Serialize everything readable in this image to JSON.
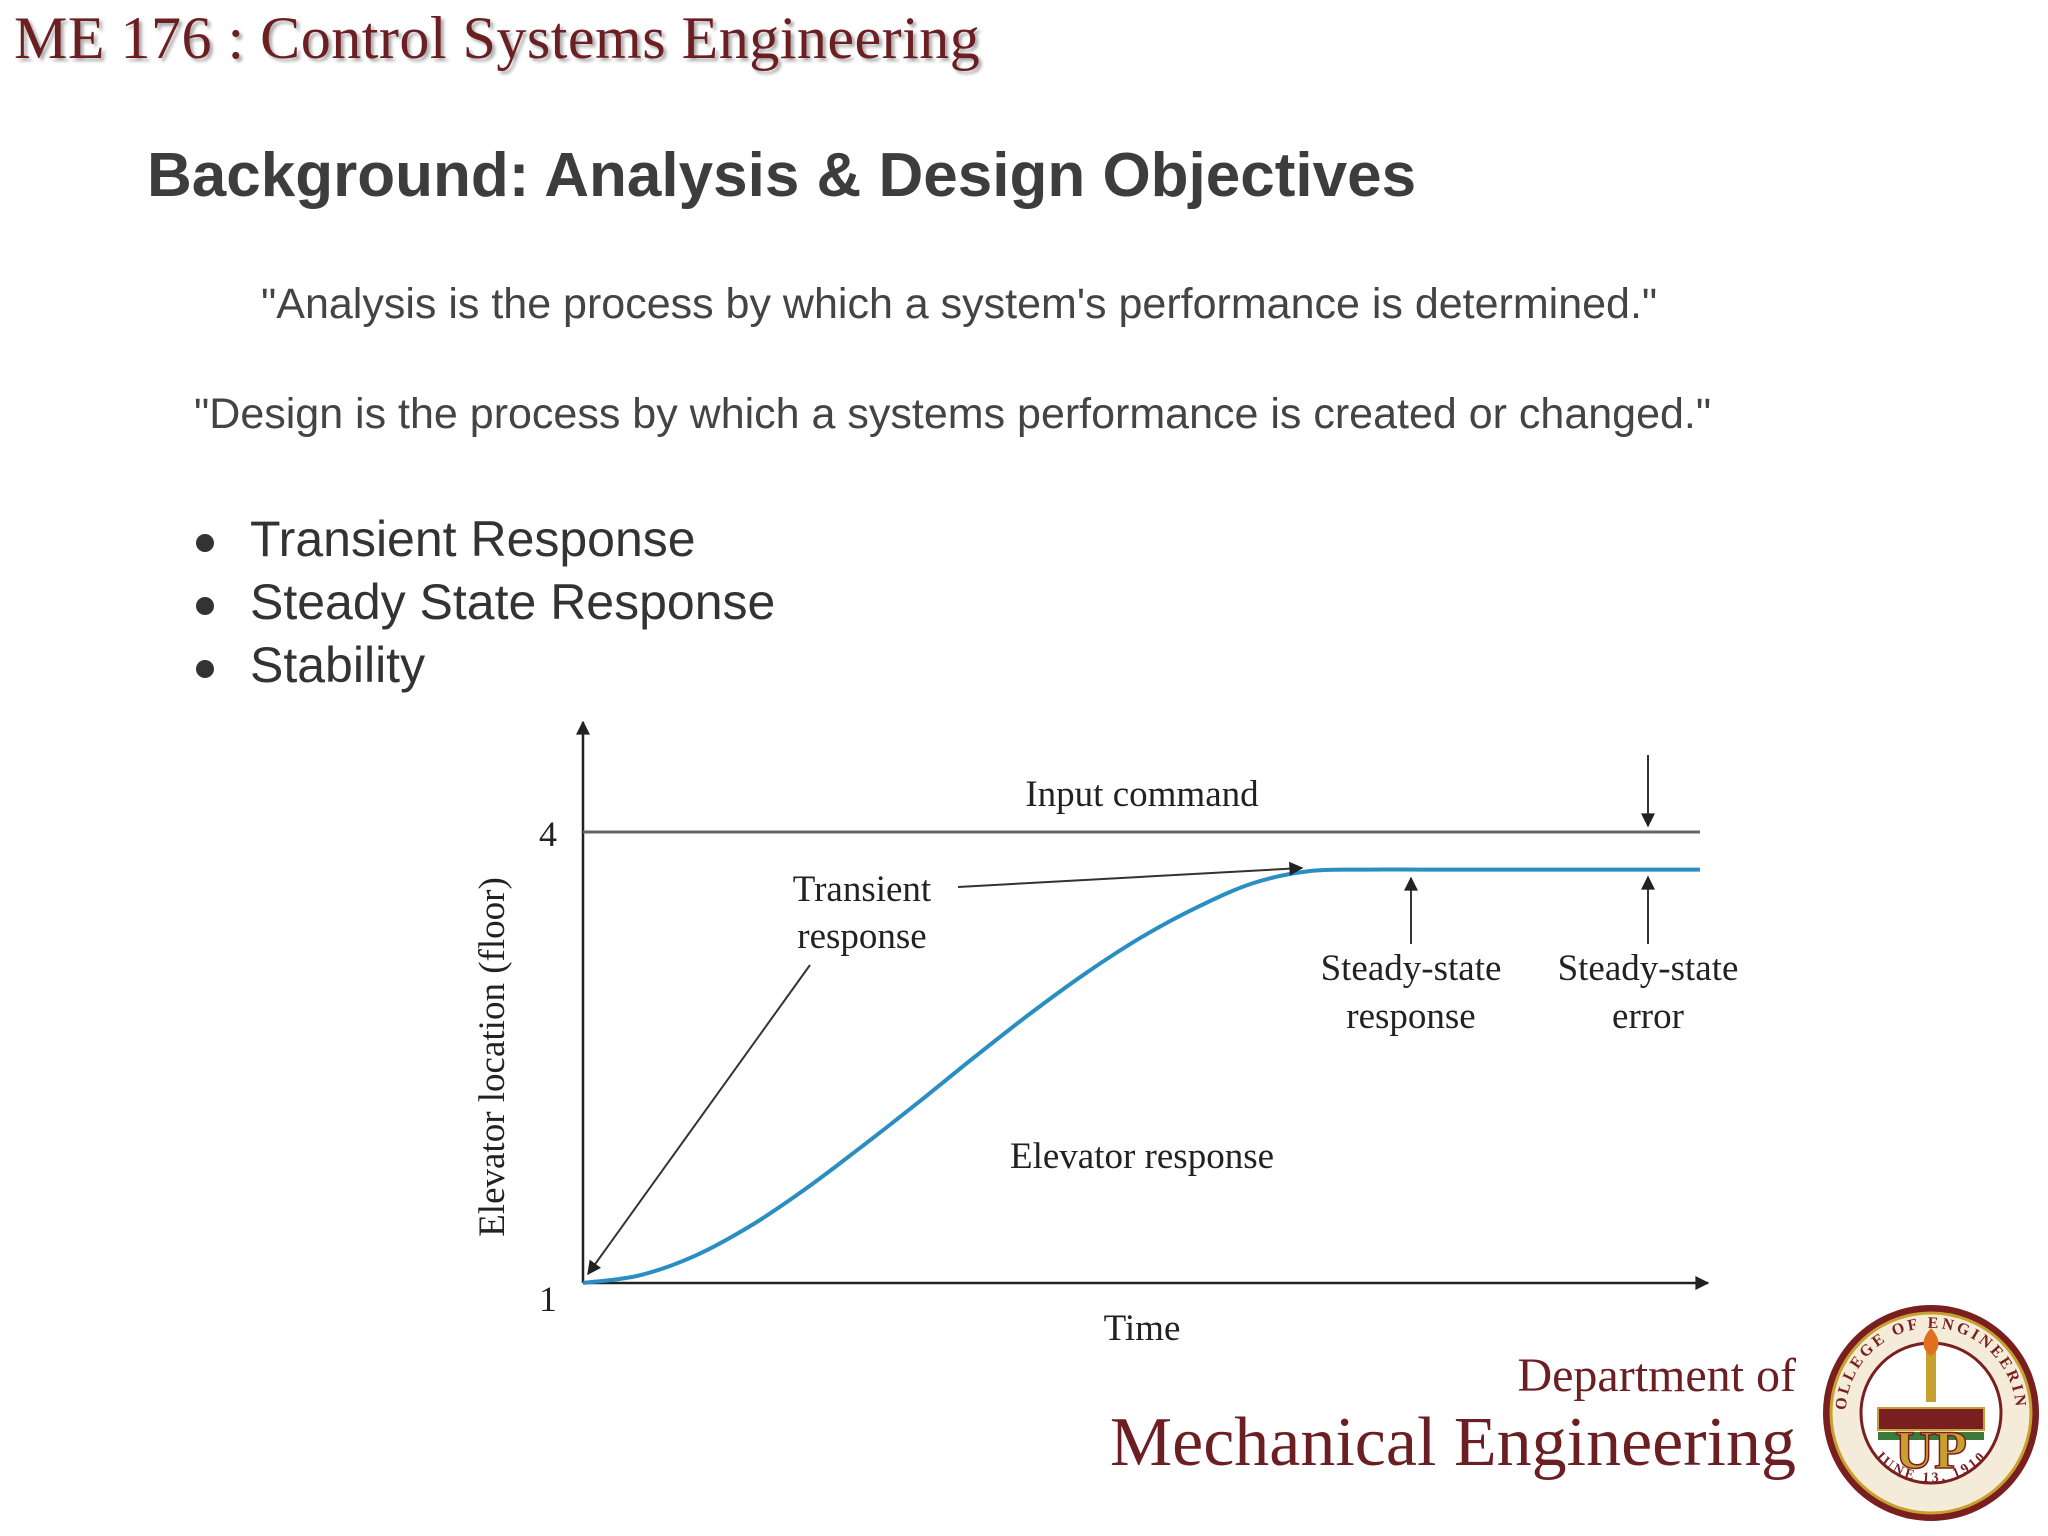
{
  "header": {
    "course_title": "ME 176 :  Control Systems Engineering"
  },
  "slide": {
    "title": "Background:  Analysis & Design Objectives",
    "quotes": [
      "\"Analysis is the process by which a system's performance is determined.\"",
      "\"Design is the process by which a systems performance is created or changed.\""
    ],
    "bullets": [
      "Transient Response",
      "Steady State Response",
      "Stability"
    ]
  },
  "chart_data": {
    "type": "line",
    "xlabel": "Time",
    "ylabel": "Elevator location (floor)",
    "y_ticks": [
      "1",
      "4"
    ],
    "ylim": [
      1,
      4
    ],
    "x_units": "relative time (no numeric ticks shown)",
    "series": [
      {
        "name": "Elevator response",
        "color": "#2a8ec2",
        "x": [
          0,
          0.05,
          0.1,
          0.15,
          0.2,
          0.25,
          0.3,
          0.35,
          0.4,
          0.45,
          0.5,
          0.55,
          0.6,
          0.65,
          0.7,
          0.75,
          0.8,
          0.85,
          0.9,
          0.95,
          1.0
        ],
        "y": [
          1.0,
          1.05,
          1.18,
          1.38,
          1.63,
          1.91,
          2.2,
          2.5,
          2.79,
          3.06,
          3.3,
          3.5,
          3.66,
          3.74,
          3.75,
          3.75,
          3.75,
          3.75,
          3.75,
          3.75,
          3.75
        ]
      },
      {
        "name": "Input command",
        "color": "#666666",
        "x": [
          0,
          1.0
        ],
        "y": [
          4,
          4
        ]
      }
    ],
    "annotations": {
      "input_command": "Input command",
      "transient": [
        "Transient",
        "response"
      ],
      "steady_state_response": [
        "Steady-state",
        "response"
      ],
      "steady_state_error": [
        "Steady-state",
        "error"
      ],
      "elevator_response": "Elevator response"
    }
  },
  "footer": {
    "dept_line1": "Department of",
    "dept_line2": "Mechanical Engineering",
    "seal": {
      "ring_text_top": "COLLEGE OF ENGINEERING",
      "ring_text_bottom": "JUNE 13, 1910",
      "monogram": "UP",
      "colors": {
        "maroon": "#7a1f1f",
        "gold": "#c8a030",
        "green": "#3a7a3a"
      }
    }
  }
}
